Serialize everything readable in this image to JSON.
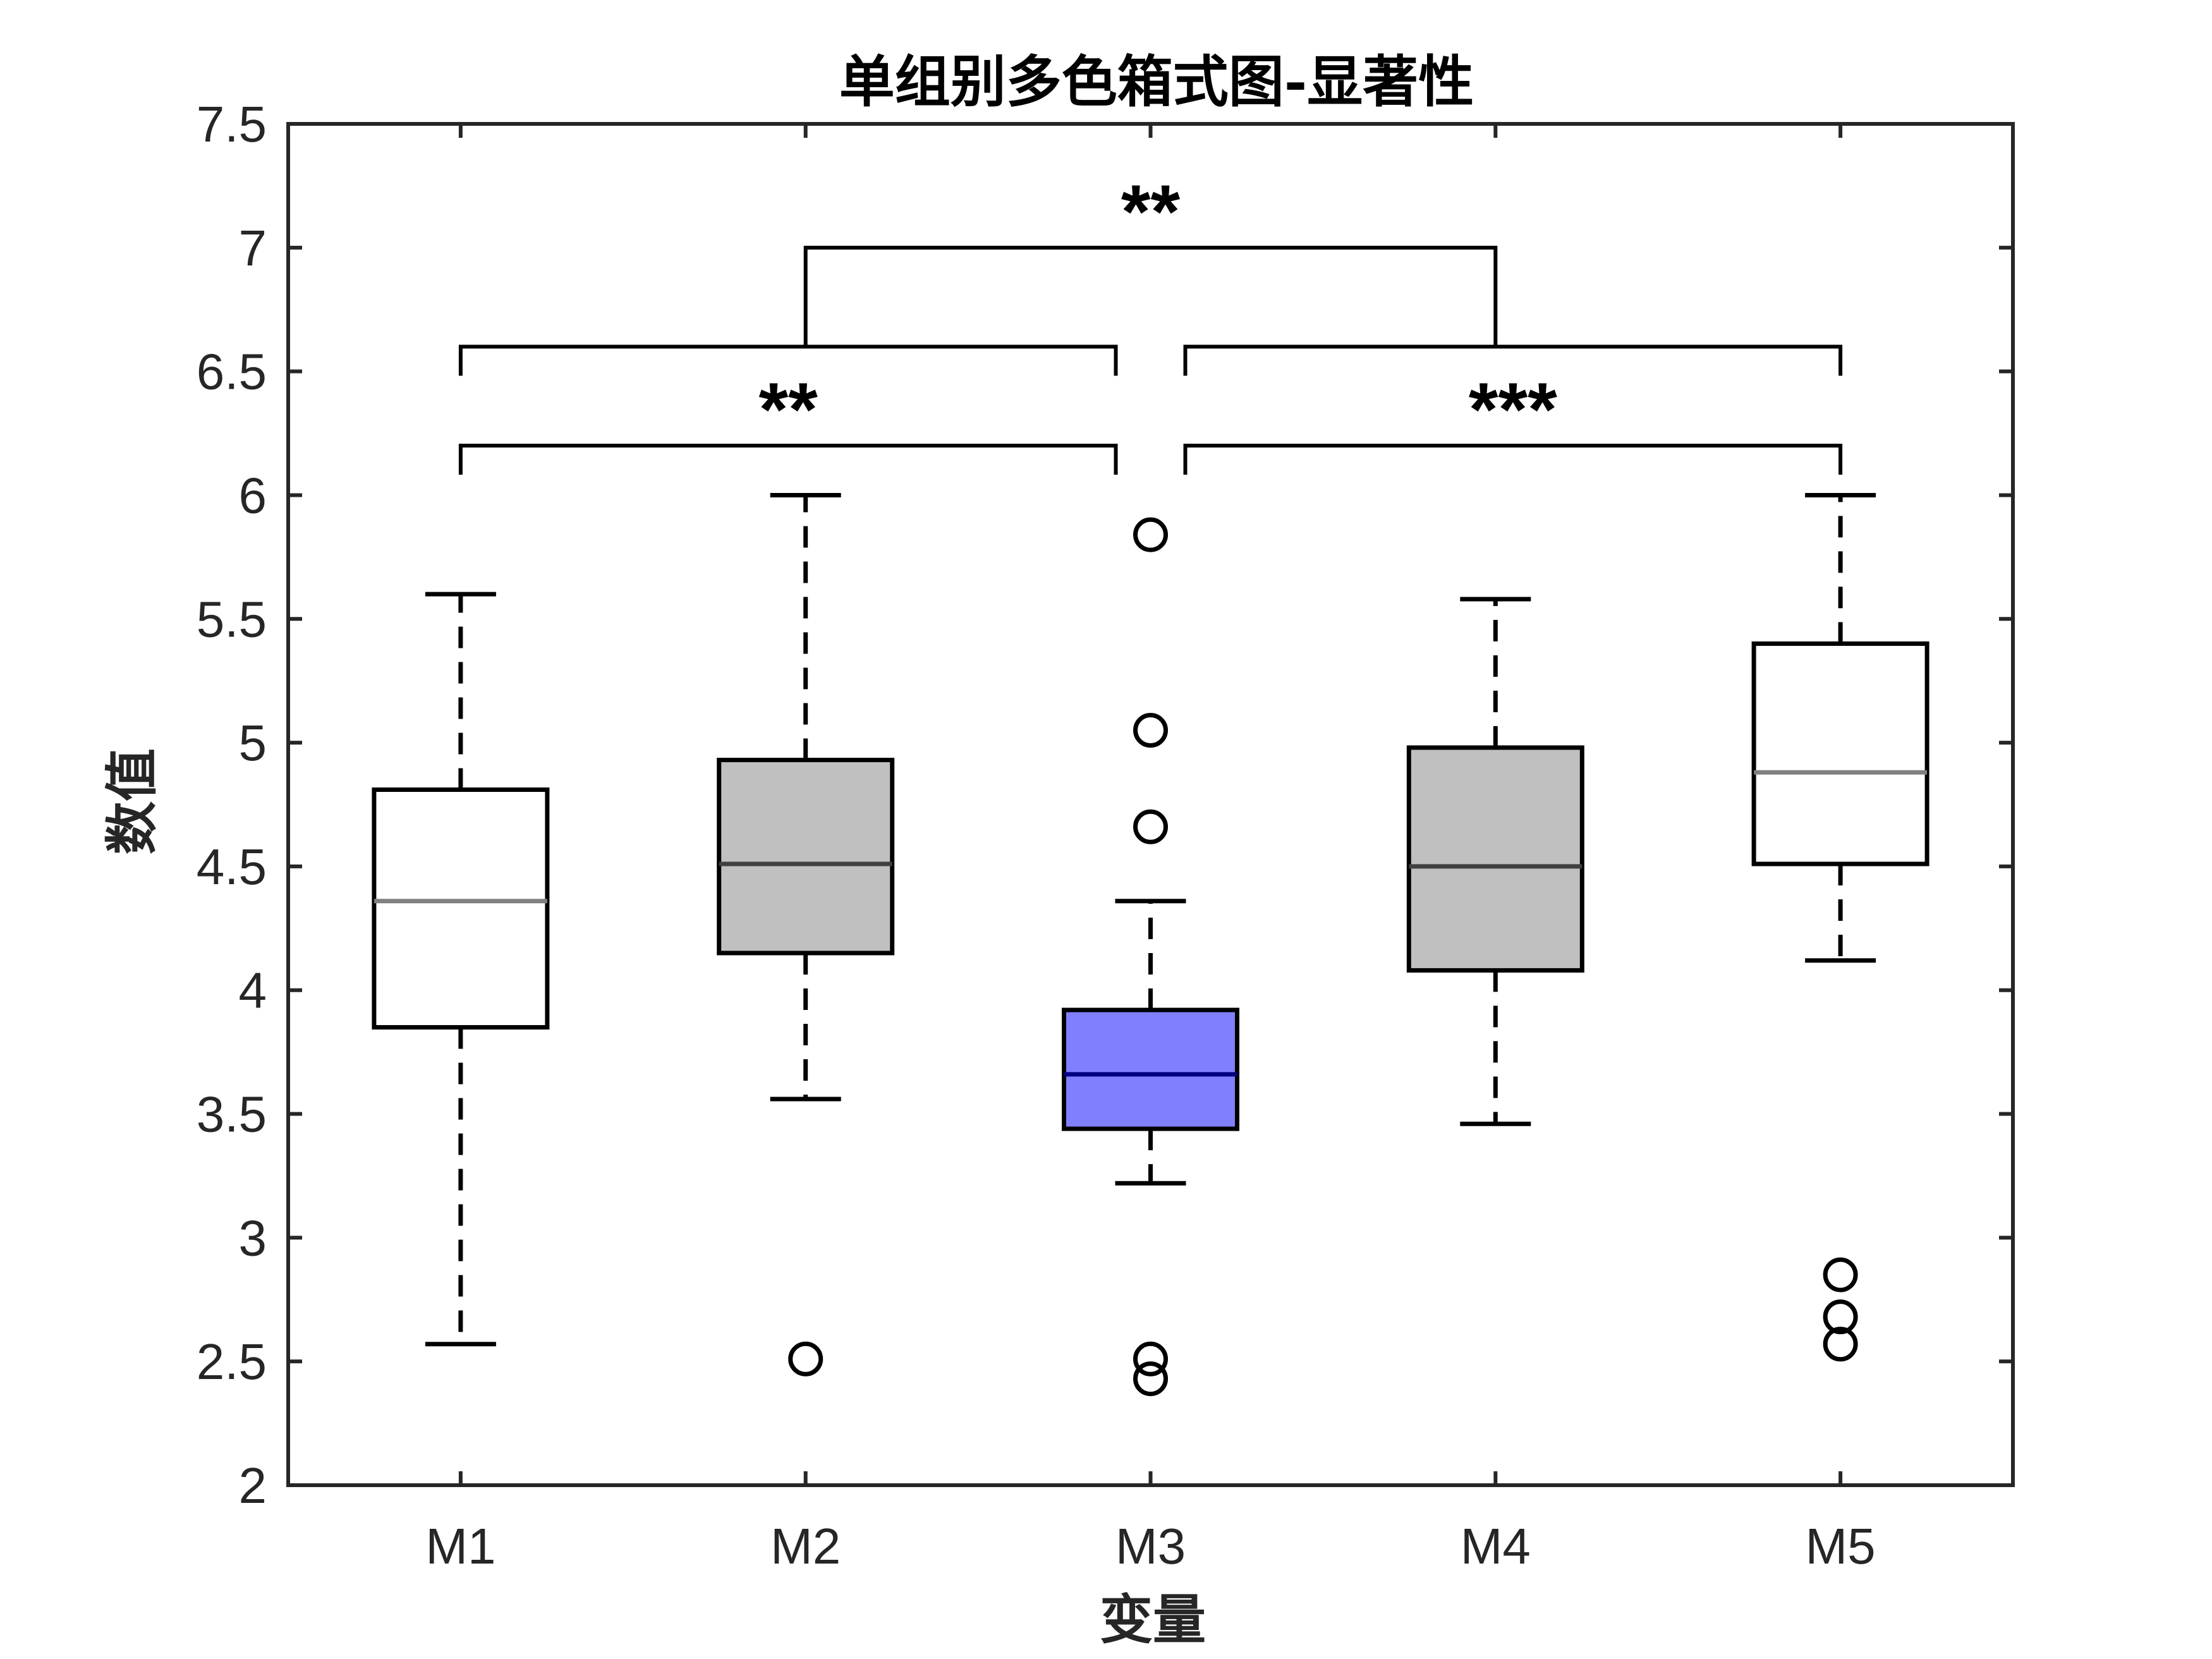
{
  "chart_data": {
    "type": "box",
    "title": "单组别多色箱式图-显著性",
    "xlabel": "变量",
    "ylabel": "数值",
    "ylim": [
      2,
      7.5
    ],
    "yticks": [
      "2",
      "2.5",
      "3",
      "3.5",
      "4",
      "4.5",
      "5",
      "5.5",
      "6",
      "6.5",
      "7",
      "7.5"
    ],
    "categories": [
      "M1",
      "M2",
      "M3",
      "M4",
      "M5"
    ],
    "boxes": [
      {
        "category": "M1",
        "whisker_low": 2.57,
        "q1": 3.85,
        "median": 4.36,
        "q3": 4.81,
        "whisker_high": 5.6,
        "outliers": [],
        "fill": "#ffffff",
        "median_color": "#808080"
      },
      {
        "category": "M2",
        "whisker_low": 3.56,
        "q1": 4.15,
        "median": 4.51,
        "q3": 4.93,
        "whisker_high": 6.0,
        "outliers": [
          2.51
        ],
        "fill": "#c0c0c0",
        "median_color": "#404040"
      },
      {
        "category": "M3",
        "whisker_low": 3.22,
        "q1": 3.44,
        "median": 3.66,
        "q3": 3.92,
        "whisker_high": 4.36,
        "outliers": [
          5.84,
          5.05,
          4.66,
          2.51,
          2.43
        ],
        "fill": "#8080ff",
        "median_color": "#000080"
      },
      {
        "category": "M4",
        "whisker_low": 3.46,
        "q1": 4.08,
        "median": 4.5,
        "q3": 4.98,
        "whisker_high": 5.58,
        "outliers": [],
        "fill": "#c0c0c0",
        "median_color": "#404040"
      },
      {
        "category": "M5",
        "whisker_low": 4.12,
        "q1": 4.51,
        "median": 4.88,
        "q3": 5.4,
        "whisker_high": 6.0,
        "outliers": [
          2.85,
          2.68,
          2.57
        ],
        "fill": "#ffffff",
        "median_color": "#808080"
      }
    ],
    "significance": [
      {
        "label": "**",
        "from": "M1",
        "to": "M3",
        "level": 6.2
      },
      {
        "label": "***",
        "from": "M3",
        "to": "M5",
        "level": 6.2
      },
      {
        "label": "**",
        "from": "M1-M3",
        "to": "M3-M5",
        "level": 7.0
      }
    ],
    "grid": false,
    "colors": {
      "axis": "#262626",
      "box_edge": "#000000"
    }
  }
}
